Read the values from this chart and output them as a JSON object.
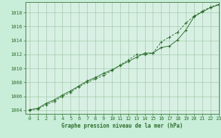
{
  "title": "Graphe pression niveau de la mer (hPa)",
  "background_color": "#c8edd8",
  "plot_bg_color": "#d8f0e4",
  "grid_color": "#a0c8a8",
  "line_color": "#2d6e2d",
  "marker_color": "#2d6e2d",
  "xlim": [
    -0.5,
    23
  ],
  "ylim": [
    1003.5,
    1019.5
  ],
  "xticks": [
    0,
    1,
    2,
    3,
    4,
    5,
    6,
    7,
    8,
    9,
    10,
    11,
    12,
    13,
    14,
    15,
    16,
    17,
    18,
    19,
    20,
    21,
    22,
    23
  ],
  "yticks": [
    1004,
    1006,
    1008,
    1010,
    1012,
    1014,
    1016,
    1018
  ],
  "series1_x": [
    0,
    1,
    2,
    3,
    4,
    5,
    6,
    7,
    8,
    9,
    10,
    11,
    12,
    13,
    14,
    15,
    16,
    17,
    18,
    19,
    20,
    21,
    22,
    23
  ],
  "series1_y": [
    1004.1,
    1004.3,
    1005.0,
    1005.5,
    1006.2,
    1006.8,
    1007.5,
    1008.2,
    1008.7,
    1009.3,
    1009.8,
    1010.4,
    1011.0,
    1011.6,
    1012.2,
    1012.2,
    1013.0,
    1013.2,
    1014.1,
    1015.5,
    1017.4,
    1018.1,
    1018.7,
    1019.1
  ],
  "series2_x": [
    0,
    1,
    2,
    3,
    4,
    5,
    6,
    7,
    8,
    9,
    10,
    11,
    12,
    13,
    14,
    15,
    16,
    17,
    18,
    19,
    20,
    21,
    22,
    23
  ],
  "series2_y": [
    1004.0,
    1004.2,
    1004.8,
    1005.3,
    1006.0,
    1006.6,
    1007.4,
    1008.0,
    1008.5,
    1009.0,
    1009.7,
    1010.5,
    1011.2,
    1012.0,
    1012.0,
    1012.2,
    1013.8,
    1014.5,
    1015.2,
    1016.5,
    1017.5,
    1018.2,
    1018.8,
    1019.2
  ],
  "xlabel_fontsize": 5.5,
  "tick_fontsize": 5.0,
  "title_fontweight": "bold"
}
